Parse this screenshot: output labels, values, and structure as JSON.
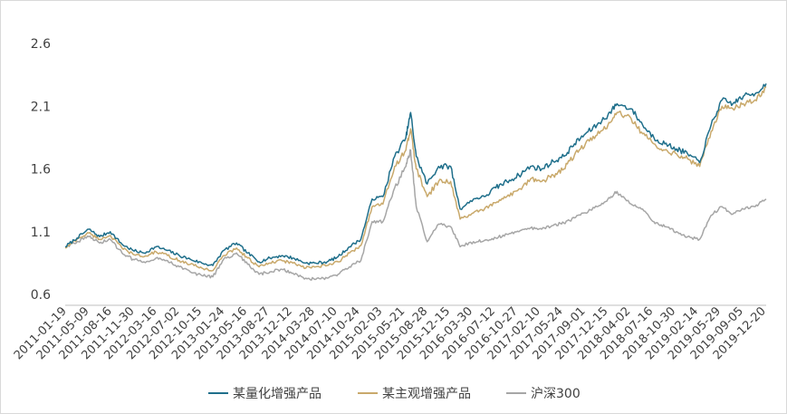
{
  "chart_data": {
    "type": "line",
    "title": "",
    "xlabel": "",
    "ylabel": "",
    "ylim": [
      0.6,
      2.6
    ],
    "yticks": [
      0.6,
      1.1,
      1.6,
      2.1,
      2.6
    ],
    "ytick_labels": [
      "0.6",
      "1.1",
      "1.6",
      "2.1",
      "2.6"
    ],
    "grid": false,
    "legend_position": "bottom",
    "x_tick_labels": [
      "2011-01-19",
      "2011-05-09",
      "2011-08-16",
      "2011-11-30",
      "2012-03-16",
      "2012-07-02",
      "2012-10-15",
      "2013-01-24",
      "2013-05-16",
      "2013-08-27",
      "2013-12-12",
      "2014-03-28",
      "2014-07-10",
      "2014-10-24",
      "2015-02-03",
      "2015-05-21",
      "2015-08-28",
      "2015-12-15",
      "2016-03-30",
      "2016-07-12",
      "2016-10-27",
      "2017-02-10",
      "2017-05-24",
      "2017-09-01",
      "2017-12-15",
      "2018-04-02",
      "2018-07-16",
      "2018-10-30",
      "2019-02-14",
      "2019-05-29",
      "2019-09-05",
      "2019-12-20"
    ],
    "x": [
      "2011-01-19",
      "2011-03-15",
      "2011-05-09",
      "2011-06-28",
      "2011-08-16",
      "2011-10-10",
      "2011-11-30",
      "2012-01-20",
      "2012-03-16",
      "2012-05-08",
      "2012-07-02",
      "2012-08-22",
      "2012-10-15",
      "2012-12-05",
      "2013-01-24",
      "2013-03-25",
      "2013-05-16",
      "2013-07-08",
      "2013-08-27",
      "2013-10-22",
      "2013-12-12",
      "2014-02-10",
      "2014-03-28",
      "2014-05-20",
      "2014-07-10",
      "2014-09-01",
      "2014-10-24",
      "2014-12-15",
      "2015-02-03",
      "2015-03-30",
      "2015-05-21",
      "2015-06-12",
      "2015-07-08",
      "2015-08-28",
      "2015-10-20",
      "2015-12-15",
      "2016-01-28",
      "2016-03-30",
      "2016-05-20",
      "2016-07-12",
      "2016-09-01",
      "2016-10-27",
      "2016-12-20",
      "2017-02-10",
      "2017-04-05",
      "2017-05-24",
      "2017-07-12",
      "2017-09-01",
      "2017-10-25",
      "2017-12-15",
      "2018-01-26",
      "2018-04-02",
      "2018-05-25",
      "2018-07-16",
      "2018-09-05",
      "2018-10-30",
      "2018-12-20",
      "2019-02-14",
      "2019-04-08",
      "2019-05-29",
      "2019-07-18",
      "2019-09-05",
      "2019-10-30",
      "2019-12-20"
    ],
    "series": [
      {
        "name": "某量化增强产品",
        "color": "#1f6f8b",
        "values": [
          0.98,
          1.05,
          1.12,
          1.06,
          1.1,
          1.0,
          0.95,
          0.93,
          0.98,
          0.95,
          0.91,
          0.88,
          0.85,
          0.83,
          0.95,
          1.01,
          0.93,
          0.86,
          0.89,
          0.91,
          0.89,
          0.85,
          0.85,
          0.86,
          0.9,
          0.98,
          1.04,
          1.36,
          1.38,
          1.7,
          1.85,
          2.05,
          1.7,
          1.48,
          1.62,
          1.62,
          1.28,
          1.36,
          1.38,
          1.45,
          1.5,
          1.55,
          1.62,
          1.6,
          1.66,
          1.7,
          1.8,
          1.88,
          1.95,
          2.03,
          2.12,
          2.08,
          1.95,
          1.85,
          1.8,
          1.76,
          1.72,
          1.65,
          1.95,
          2.15,
          2.12,
          2.18,
          2.2,
          2.28
        ]
      },
      {
        "name": "某主观增强产品",
        "color": "#c9a96b",
        "values": [
          0.97,
          1.04,
          1.09,
          1.04,
          1.07,
          0.97,
          0.92,
          0.9,
          0.94,
          0.91,
          0.87,
          0.84,
          0.81,
          0.79,
          0.91,
          0.97,
          0.89,
          0.82,
          0.85,
          0.87,
          0.85,
          0.81,
          0.82,
          0.83,
          0.86,
          0.93,
          0.99,
          1.3,
          1.32,
          1.62,
          1.75,
          1.92,
          1.6,
          1.38,
          1.5,
          1.5,
          1.2,
          1.25,
          1.28,
          1.33,
          1.38,
          1.44,
          1.52,
          1.5,
          1.55,
          1.6,
          1.71,
          1.8,
          1.87,
          1.95,
          2.05,
          2.0,
          1.88,
          1.8,
          1.75,
          1.72,
          1.68,
          1.62,
          1.9,
          2.1,
          2.08,
          2.12,
          2.15,
          2.25
        ]
      },
      {
        "name": "沪深300",
        "color": "#a6a6a6",
        "values": [
          0.98,
          1.02,
          1.06,
          1.01,
          1.04,
          0.93,
          0.88,
          0.86,
          0.89,
          0.87,
          0.82,
          0.78,
          0.75,
          0.74,
          0.88,
          0.93,
          0.84,
          0.76,
          0.78,
          0.8,
          0.77,
          0.73,
          0.72,
          0.73,
          0.76,
          0.82,
          0.87,
          1.18,
          1.18,
          1.45,
          1.62,
          1.75,
          1.3,
          1.02,
          1.16,
          1.14,
          0.98,
          1.02,
          1.03,
          1.05,
          1.08,
          1.1,
          1.13,
          1.12,
          1.15,
          1.17,
          1.21,
          1.25,
          1.3,
          1.36,
          1.42,
          1.32,
          1.28,
          1.18,
          1.14,
          1.1,
          1.06,
          1.04,
          1.23,
          1.3,
          1.24,
          1.28,
          1.3,
          1.36
        ]
      }
    ]
  }
}
